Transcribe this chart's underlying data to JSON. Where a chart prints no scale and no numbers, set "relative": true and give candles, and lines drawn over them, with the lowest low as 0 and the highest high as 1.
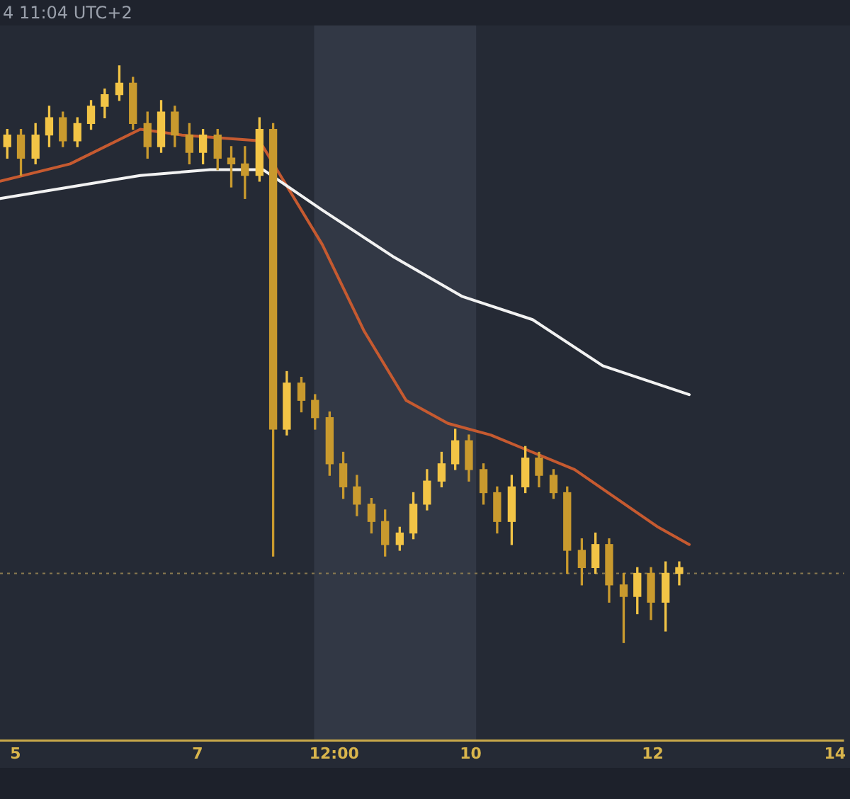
{
  "chart_data": {
    "type": "candlestick",
    "title": "4 11:04 UTC+2",
    "relative": true,
    "legend": false,
    "grid": false,
    "xlim": [
      "--05-04T19:55",
      "--05-14T02:24"
    ],
    "xticks": [
      {
        "value": "--05-05",
        "label": "5"
      },
      {
        "value": "--05-07",
        "label": "7"
      },
      {
        "value": "--05-08T12:00",
        "label": "12:00"
      },
      {
        "value": "--05-10",
        "label": "10"
      },
      {
        "value": "--05-12",
        "label": "12"
      },
      {
        "value": "--05-14",
        "label": "14"
      }
    ],
    "bands": [
      {
        "axis": "x",
        "from": "--05-08T06:43",
        "to": "--05-10T01:26",
        "color": "#323845"
      }
    ],
    "ref_lines": [
      {
        "axis": "y",
        "value": 0.12,
        "color": "#8a7a50",
        "line_style": "dotted"
      }
    ],
    "series": [
      {
        "type": "line",
        "color": "#f2f2f2",
        "x": [
          "--05-04T19:55",
          "--05-05T14:24",
          "--05-06T08:53",
          "--05-07T03:22",
          "--05-07T17:17",
          "--05-08T08:53",
          "--05-09T03:22",
          "--05-09T21:50",
          "--05-10T16:19",
          "--05-11T10:48",
          "--05-12T09:36"
        ],
        "values": [
          0.77,
          0.79,
          0.81,
          0.82,
          0.82,
          0.75,
          0.67,
          0.6,
          0.56,
          0.48,
          0.43
        ]
      },
      {
        "type": "line",
        "color": "#c65a30",
        "x": [
          "--05-04T19:55",
          "--05-05T14:24",
          "--05-06T08:53",
          "--05-06T19:55",
          "--05-07T16:19",
          "--05-07T21:50",
          "--05-08T08:53",
          "--05-08T19:55",
          "--05-09T06:58",
          "--05-09T18:00",
          "--05-10T05:17",
          "--05-10T16:19",
          "--05-11T03:22",
          "--05-11T14:24",
          "--05-12T01:26",
          "--05-12T09:36"
        ],
        "values": [
          0.8,
          0.83,
          0.89,
          0.88,
          0.87,
          0.81,
          0.69,
          0.54,
          0.42,
          0.38,
          0.36,
          0.33,
          0.3,
          0.25,
          0.2,
          0.17
        ]
      },
      {
        "type": "candlestick",
        "colors": [
          "#f2c446",
          "#c99a2e",
          "#f2c446",
          "#f2c446",
          "#c99a2e",
          "#f2c446",
          "#f2c446",
          "#f2c446",
          "#f2c446",
          "#c99a2e",
          "#c99a2e",
          "#f2c446",
          "#c99a2e",
          "#c99a2e",
          "#f2c446",
          "#c99a2e",
          "#c99a2e",
          "#c99a2e",
          "#f2c446",
          "#c99a2e",
          "#f2c446",
          "#c99a2e",
          "#c99a2e",
          "#c99a2e",
          "#c99a2e",
          "#c99a2e",
          "#c99a2e",
          "#c99a2e",
          "#f2c446",
          "#f2c446",
          "#f2c446",
          "#f2c446",
          "#f2c446",
          "#c99a2e",
          "#c99a2e",
          "#c99a2e",
          "#f2c446",
          "#f2c446",
          "#c99a2e",
          "#c99a2e",
          "#c99a2e",
          "#c99a2e",
          "#f2c446",
          "#c99a2e",
          "#c99a2e",
          "#f2c446",
          "#c99a2e",
          "#f2c446",
          "#f2c446"
        ],
        "x": [
          "--05-04T21:50",
          "--05-05T01:26",
          "--05-05T05:17",
          "--05-05T08:53",
          "--05-05T12:29",
          "--05-05T16:19",
          "--05-05T19:55",
          "--05-05T23:31",
          "--05-06T03:22",
          "--05-06T06:58",
          "--05-06T10:48",
          "--05-06T14:24",
          "--05-06T18:00",
          "--05-06T21:50",
          "--05-07T01:26",
          "--05-07T05:17",
          "--05-07T08:53",
          "--05-07T12:29",
          "--05-07T16:19",
          "--05-07T19:55",
          "--05-07T23:31",
          "--05-08T03:22",
          "--05-08T06:58",
          "--05-08T10:48",
          "--05-08T14:24",
          "--05-08T18:00",
          "--05-08T21:50",
          "--05-09T01:26",
          "--05-09T05:17",
          "--05-09T08:53",
          "--05-09T12:29",
          "--05-09T16:19",
          "--05-09T19:55",
          "--05-09T23:31",
          "--05-10T03:22",
          "--05-10T06:58",
          "--05-10T10:48",
          "--05-10T14:24",
          "--05-10T18:00",
          "--05-10T21:50",
          "--05-11T01:26",
          "--05-11T05:17",
          "--05-11T08:53",
          "--05-11T12:29",
          "--05-11T16:19",
          "--05-11T19:55",
          "--05-11T23:31",
          "--05-12T03:22",
          "--05-12T06:58"
        ],
        "ohlc": [
          [
            0.86,
            0.89,
            0.84,
            0.88
          ],
          [
            0.88,
            0.89,
            0.81,
            0.84
          ],
          [
            0.84,
            0.9,
            0.83,
            0.88
          ],
          [
            0.88,
            0.93,
            0.86,
            0.91
          ],
          [
            0.91,
            0.92,
            0.86,
            0.87
          ],
          [
            0.87,
            0.91,
            0.86,
            0.9
          ],
          [
            0.9,
            0.94,
            0.89,
            0.93
          ],
          [
            0.93,
            0.96,
            0.91,
            0.95
          ],
          [
            0.95,
            1,
            0.94,
            0.97
          ],
          [
            0.97,
            0.98,
            0.89,
            0.9
          ],
          [
            0.9,
            0.92,
            0.84,
            0.86
          ],
          [
            0.86,
            0.94,
            0.85,
            0.92
          ],
          [
            0.92,
            0.93,
            0.86,
            0.88
          ],
          [
            0.88,
            0.9,
            0.83,
            0.85
          ],
          [
            0.85,
            0.89,
            0.83,
            0.88
          ],
          [
            0.88,
            0.89,
            0.82,
            0.84
          ],
          [
            0.84,
            0.86,
            0.79,
            0.83
          ],
          [
            0.83,
            0.86,
            0.77,
            0.81
          ],
          [
            0.81,
            0.91,
            0.8,
            0.89
          ],
          [
            0.89,
            0.9,
            0.15,
            0.37
          ],
          [
            0.37,
            0.47,
            0.36,
            0.45
          ],
          [
            0.45,
            0.46,
            0.4,
            0.42
          ],
          [
            0.42,
            0.43,
            0.37,
            0.39
          ],
          [
            0.39,
            0.4,
            0.29,
            0.31
          ],
          [
            0.31,
            0.33,
            0.25,
            0.27
          ],
          [
            0.27,
            0.29,
            0.22,
            0.24
          ],
          [
            0.24,
            0.25,
            0.19,
            0.21
          ],
          [
            0.21,
            0.23,
            0.15,
            0.17
          ],
          [
            0.17,
            0.2,
            0.16,
            0.19
          ],
          [
            0.19,
            0.26,
            0.18,
            0.24
          ],
          [
            0.24,
            0.3,
            0.23,
            0.28
          ],
          [
            0.28,
            0.33,
            0.27,
            0.31
          ],
          [
            0.31,
            0.37,
            0.3,
            0.35
          ],
          [
            0.35,
            0.36,
            0.28,
            0.3
          ],
          [
            0.3,
            0.31,
            0.24,
            0.26
          ],
          [
            0.26,
            0.27,
            0.19,
            0.21
          ],
          [
            0.21,
            0.29,
            0.17,
            0.27
          ],
          [
            0.27,
            0.34,
            0.26,
            0.32
          ],
          [
            0.32,
            0.33,
            0.27,
            0.29
          ],
          [
            0.29,
            0.3,
            0.25,
            0.26
          ],
          [
            0.26,
            0.27,
            0.12,
            0.16
          ],
          [
            0.16,
            0.18,
            0.1,
            0.13
          ],
          [
            0.13,
            0.19,
            0.12,
            0.17
          ],
          [
            0.17,
            0.18,
            0.07,
            0.1
          ],
          [
            0.1,
            0.12,
            0,
            0.08
          ],
          [
            0.08,
            0.13,
            0.05,
            0.12
          ],
          [
            0.12,
            0.13,
            0.04,
            0.07
          ],
          [
            0.07,
            0.14,
            0.02,
            0.12
          ],
          [
            0.12,
            0.14,
            0.1,
            0.13
          ]
        ]
      }
    ]
  }
}
